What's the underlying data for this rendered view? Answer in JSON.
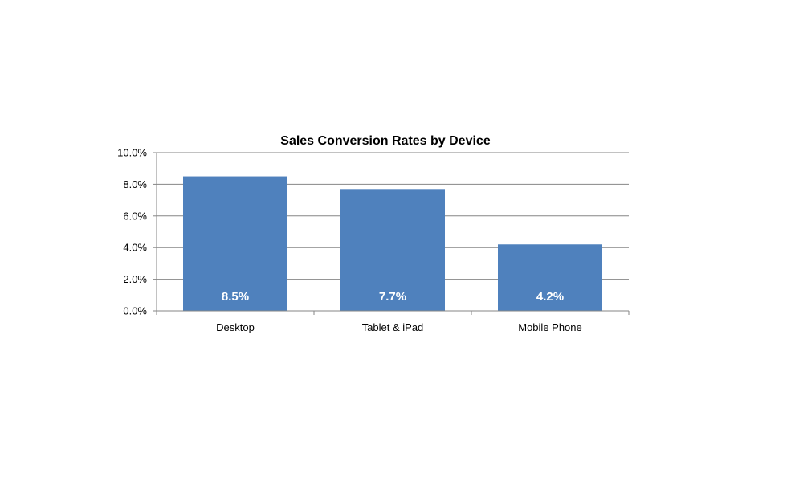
{
  "chart_data": {
    "type": "bar",
    "title": "Sales Conversion Rates by Device",
    "categories": [
      "Desktop",
      "Tablet & iPad",
      "Mobile Phone"
    ],
    "values": [
      8.5,
      7.7,
      4.2
    ],
    "data_labels": [
      "8.5%",
      "7.7%",
      "4.2%"
    ],
    "ylim": [
      0,
      10
    ],
    "yticks": [
      0,
      2,
      4,
      6,
      8,
      10
    ],
    "ytick_labels": [
      "0.0%",
      "2.0%",
      "4.0%",
      "6.0%",
      "8.0%",
      "10.0%"
    ],
    "xlabel": "",
    "ylabel": "",
    "grid": true,
    "legend": false,
    "bar_color": "#4f81bd",
    "grid_color": "#868686",
    "axis_color": "#868686"
  }
}
